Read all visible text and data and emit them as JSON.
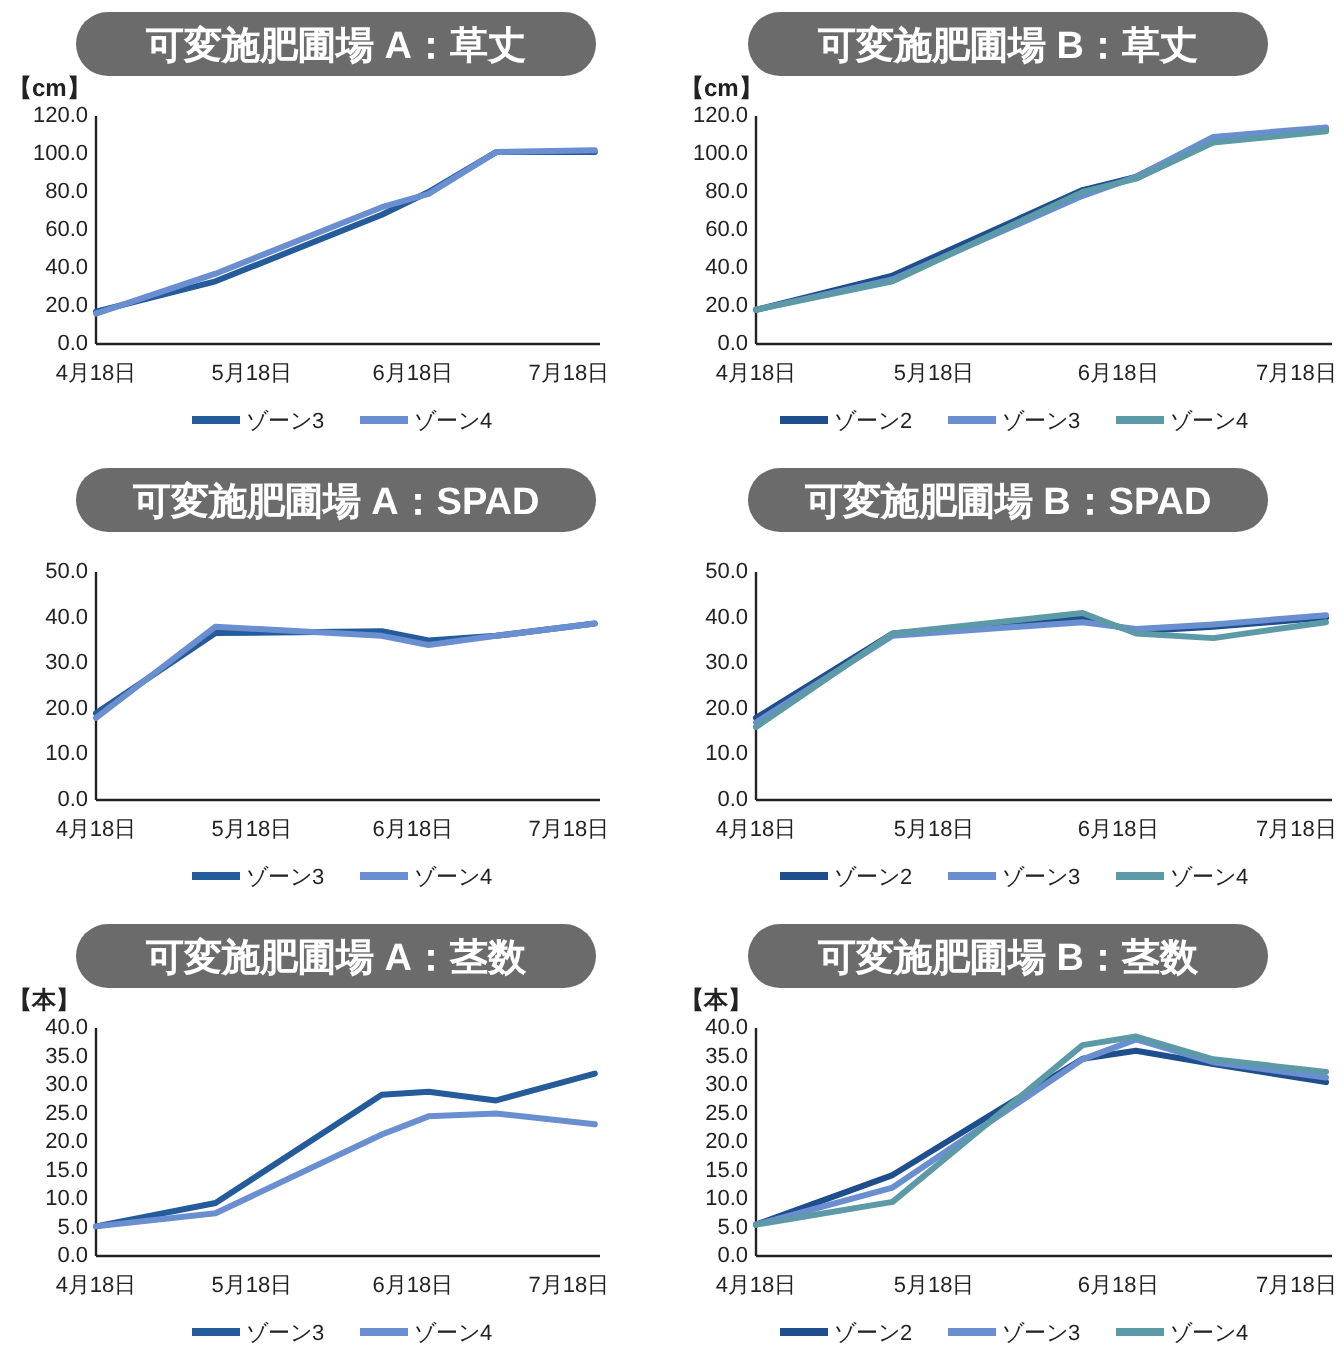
{
  "chart_data": [
    {
      "type": "line",
      "title": "可変施肥圃場 A：草丈",
      "ylabel": "【cm】",
      "x": [
        "--04-18",
        "--05-11",
        "--06-12",
        "--06-21",
        "--07-04",
        "--07-23"
      ],
      "xlim": [
        "--04-18",
        "--07-24"
      ],
      "xticks": [
        {
          "value": "--04-18",
          "label": "4月18日"
        },
        {
          "value": "--05-18",
          "label": "5月18日"
        },
        {
          "value": "--06-18",
          "label": "6月18日"
        },
        {
          "value": "--07-18",
          "label": "7月18日"
        }
      ],
      "ylim": [
        0,
        120
      ],
      "yticks": [
        {
          "value": 0,
          "label": "0.0"
        },
        {
          "value": 20,
          "label": "20.0"
        },
        {
          "value": 40,
          "label": "40.0"
        },
        {
          "value": 60,
          "label": "60.0"
        },
        {
          "value": 80,
          "label": "80.0"
        },
        {
          "value": 100,
          "label": "100.0"
        },
        {
          "value": 120,
          "label": "120.0"
        }
      ],
      "legend": "bottom",
      "grid": false,
      "marker": "none",
      "line_style": "solid",
      "series": [
        {
          "name": "ゾーン3",
          "color": "#245b9b",
          "values": [
            17,
            33,
            68,
            80,
            101,
            101
          ]
        },
        {
          "name": "ゾーン4",
          "color": "#6a8fd0",
          "values": [
            16,
            37,
            72,
            79,
            101,
            102
          ]
        }
      ]
    },
    {
      "type": "line",
      "title": "可変施肥圃場 B：草丈",
      "ylabel": "【cm】",
      "x": [
        "--04-18",
        "--05-11",
        "--06-12",
        "--06-21",
        "--07-04",
        "--07-23"
      ],
      "xlim": [
        "--04-18",
        "--07-24"
      ],
      "xticks": [
        {
          "value": "--04-18",
          "label": "4月18日"
        },
        {
          "value": "--05-18",
          "label": "5月18日"
        },
        {
          "value": "--06-18",
          "label": "6月18日"
        },
        {
          "value": "--07-18",
          "label": "7月18日"
        }
      ],
      "ylim": [
        0,
        120
      ],
      "yticks": [
        {
          "value": 0,
          "label": "0.0"
        },
        {
          "value": 20,
          "label": "20.0"
        },
        {
          "value": 40,
          "label": "40.0"
        },
        {
          "value": 60,
          "label": "60.0"
        },
        {
          "value": 80,
          "label": "80.0"
        },
        {
          "value": 100,
          "label": "100.0"
        },
        {
          "value": 120,
          "label": "120.0"
        }
      ],
      "legend": "bottom",
      "grid": false,
      "marker": "none",
      "line_style": "solid",
      "series": [
        {
          "name": "ゾーン2",
          "color": "#1f4e8c",
          "values": [
            18,
            36,
            81,
            88,
            108,
            113
          ]
        },
        {
          "name": "ゾーン3",
          "color": "#6a8fd0",
          "values": [
            18,
            34,
            78,
            88,
            109,
            114
          ]
        },
        {
          "name": "ゾーン4",
          "color": "#5b9aa6",
          "values": [
            18,
            33,
            80,
            87,
            106,
            112
          ]
        }
      ]
    },
    {
      "type": "line",
      "title": "可変施肥圃場 A：SPAD",
      "x": [
        "--04-18",
        "--05-11",
        "--06-12",
        "--06-21",
        "--07-04",
        "--07-23"
      ],
      "xlim": [
        "--04-18",
        "--07-24"
      ],
      "xticks": [
        {
          "value": "--04-18",
          "label": "4月18日"
        },
        {
          "value": "--05-18",
          "label": "5月18日"
        },
        {
          "value": "--06-18",
          "label": "6月18日"
        },
        {
          "value": "--07-18",
          "label": "7月18日"
        }
      ],
      "ylim": [
        0,
        50
      ],
      "yticks": [
        {
          "value": 0,
          "label": "0.0"
        },
        {
          "value": 10,
          "label": "10.0"
        },
        {
          "value": 20,
          "label": "20.0"
        },
        {
          "value": 30,
          "label": "30.0"
        },
        {
          "value": 40,
          "label": "40.0"
        },
        {
          "value": 50,
          "label": "50.0"
        }
      ],
      "legend": "bottom",
      "grid": false,
      "marker": "none",
      "line_style": "solid",
      "series": [
        {
          "name": "ゾーン3",
          "color": "#245b9b",
          "values": [
            19,
            36.6,
            37,
            35,
            36,
            38.7
          ]
        },
        {
          "name": "ゾーン4",
          "color": "#6a8fd0",
          "values": [
            18,
            38,
            36,
            34,
            36,
            38.7
          ]
        }
      ]
    },
    {
      "type": "line",
      "title": "可変施肥圃場 B：SPAD",
      "x": [
        "--04-18",
        "--05-11",
        "--06-12",
        "--06-21",
        "--07-04",
        "--07-23"
      ],
      "xlim": [
        "--04-18",
        "--07-24"
      ],
      "xticks": [
        {
          "value": "--04-18",
          "label": "4月18日"
        },
        {
          "value": "--05-18",
          "label": "5月18日"
        },
        {
          "value": "--06-18",
          "label": "6月18日"
        },
        {
          "value": "--07-18",
          "label": "7月18日"
        }
      ],
      "ylim": [
        0,
        50
      ],
      "yticks": [
        {
          "value": 0,
          "label": "0.0"
        },
        {
          "value": 10,
          "label": "10.0"
        },
        {
          "value": 20,
          "label": "20.0"
        },
        {
          "value": 30,
          "label": "30.0"
        },
        {
          "value": 40,
          "label": "40.0"
        },
        {
          "value": 50,
          "label": "50.0"
        }
      ],
      "legend": "bottom",
      "grid": false,
      "marker": "none",
      "line_style": "solid",
      "series": [
        {
          "name": "ゾーン2",
          "color": "#1f4e8c",
          "values": [
            18,
            36.5,
            40,
            37,
            38,
            40
          ]
        },
        {
          "name": "ゾーン3",
          "color": "#6a8fd0",
          "values": [
            17,
            36,
            39,
            37.5,
            38.5,
            40.5
          ]
        },
        {
          "name": "ゾーン4",
          "color": "#5b9aa6",
          "values": [
            16,
            36.5,
            41,
            36.5,
            35.5,
            39
          ]
        }
      ]
    },
    {
      "type": "line",
      "title": "可変施肥圃場 A：茎数",
      "ylabel": "【本】",
      "x": [
        "--04-18",
        "--05-11",
        "--06-12",
        "--06-21",
        "--07-04",
        "--07-23"
      ],
      "xlim": [
        "--04-18",
        "--07-24"
      ],
      "xticks": [
        {
          "value": "--04-18",
          "label": "4月18日"
        },
        {
          "value": "--05-18",
          "label": "5月18日"
        },
        {
          "value": "--06-18",
          "label": "6月18日"
        },
        {
          "value": "--07-18",
          "label": "7月18日"
        }
      ],
      "ylim": [
        0,
        40
      ],
      "yticks": [
        {
          "value": 0,
          "label": "0.0"
        },
        {
          "value": 5,
          "label": "5.0"
        },
        {
          "value": 10,
          "label": "10.0"
        },
        {
          "value": 15,
          "label": "15.0"
        },
        {
          "value": 20,
          "label": "20.0"
        },
        {
          "value": 25,
          "label": "25.0"
        },
        {
          "value": 30,
          "label": "30.0"
        },
        {
          "value": 35,
          "label": "35.0"
        },
        {
          "value": 40,
          "label": "40.0"
        }
      ],
      "legend": "bottom",
      "grid": false,
      "marker": "none",
      "line_style": "solid",
      "series": [
        {
          "name": "ゾーン3",
          "color": "#245b9b",
          "values": [
            5.2,
            9.3,
            28.3,
            28.8,
            27.3,
            32
          ]
        },
        {
          "name": "ゾーン4",
          "color": "#6a8fd0",
          "values": [
            5.2,
            7.5,
            21.3,
            24.5,
            25,
            23.1
          ]
        }
      ]
    },
    {
      "type": "line",
      "title": "可変施肥圃場 B：茎数",
      "ylabel": "【本】",
      "x": [
        "--04-18",
        "--05-11",
        "--06-12",
        "--06-21",
        "--07-04",
        "--07-23"
      ],
      "xlim": [
        "--04-18",
        "--07-24"
      ],
      "xticks": [
        {
          "value": "--04-18",
          "label": "4月18日"
        },
        {
          "value": "--05-18",
          "label": "5月18日"
        },
        {
          "value": "--06-18",
          "label": "6月18日"
        },
        {
          "value": "--07-18",
          "label": "7月18日"
        }
      ],
      "ylim": [
        0,
        40
      ],
      "yticks": [
        {
          "value": 0,
          "label": "0.0"
        },
        {
          "value": 5,
          "label": "5.0"
        },
        {
          "value": 10,
          "label": "10.0"
        },
        {
          "value": 15,
          "label": "15.0"
        },
        {
          "value": 20,
          "label": "20.0"
        },
        {
          "value": 25,
          "label": "25.0"
        },
        {
          "value": 30,
          "label": "30.0"
        },
        {
          "value": 35,
          "label": "35.0"
        },
        {
          "value": 40,
          "label": "40.0"
        }
      ],
      "legend": "bottom",
      "grid": false,
      "marker": "none",
      "line_style": "solid",
      "series": [
        {
          "name": "ゾーン2",
          "color": "#1f4e8c",
          "values": [
            5.5,
            14.2,
            34.6,
            36,
            33.7,
            30.5
          ]
        },
        {
          "name": "ゾーン3",
          "color": "#6a8fd0",
          "values": [
            5.5,
            12,
            34.5,
            38,
            34,
            31.3
          ]
        },
        {
          "name": "ゾーン4",
          "color": "#5b9aa6",
          "values": [
            5.5,
            9.5,
            37,
            38.5,
            34.5,
            32.3
          ]
        }
      ]
    }
  ]
}
